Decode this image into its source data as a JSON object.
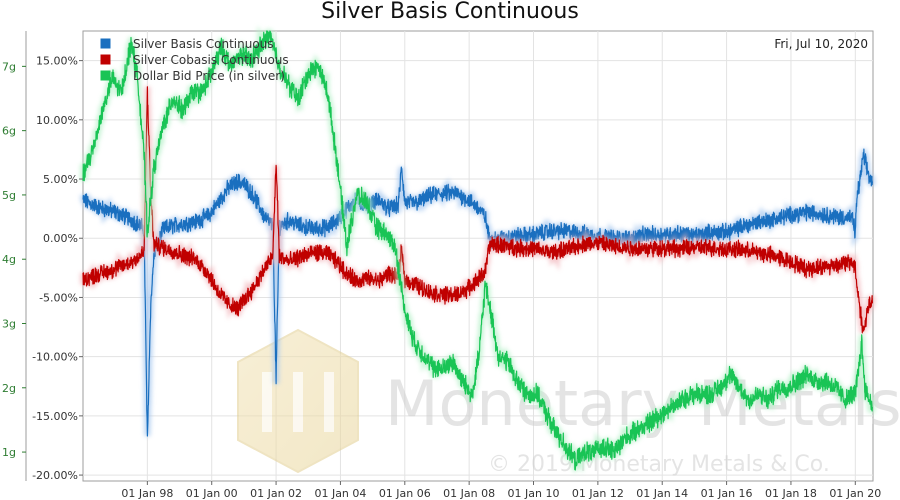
{
  "chart_data": {
    "type": "line",
    "title": "Silver Basis Continuous",
    "date_label": "Fri, Jul 10, 2020",
    "watermark": {
      "brand": "Monetary Metals",
      "copyright": "© 2019 Monetary Metals & Co."
    },
    "x_ticks": [
      "01 Jan 98",
      "01 Jan 00",
      "01 Jan 02",
      "01 Jan 04",
      "01 Jan 06",
      "01 Jan 08",
      "01 Jan 10",
      "01 Jan 12",
      "01 Jan 14",
      "01 Jan 16",
      "01 Jan 18",
      "01 Jan 20"
    ],
    "xlim": [
      1996.0,
      2020.55
    ],
    "y_left": {
      "ticks": [
        "15.00%",
        "10.00%",
        "5.00%",
        "0.00%",
        "-5.00%",
        "-10.00%",
        "-15.00%",
        "-20.00%"
      ],
      "tick_values": [
        15,
        10,
        5,
        0,
        -5,
        -10,
        -15,
        -20
      ],
      "ylim": [
        -20.5,
        17.5
      ]
    },
    "y_right": {
      "ticks": [
        "7g",
        "6g",
        "5g",
        "4g",
        "3g",
        "2g",
        "1g"
      ],
      "tick_values": [
        7,
        6,
        5,
        4,
        3,
        2,
        1
      ],
      "ylim": [
        0.55,
        7.55
      ]
    },
    "grid": true,
    "legend_position": "top-left",
    "series": [
      {
        "name": "Silver Basis Continuous",
        "color": "#1a6fbf",
        "glow": "#a9c9ef",
        "axis": "left",
        "points": [
          [
            1996.0,
            3.2
          ],
          [
            1996.5,
            2.6
          ],
          [
            1997.0,
            2.2
          ],
          [
            1997.5,
            1.6
          ],
          [
            1997.9,
            0.8
          ],
          [
            1998.0,
            -17.2
          ],
          [
            1998.1,
            -6.0
          ],
          [
            1998.2,
            -1.5
          ],
          [
            1998.5,
            0.8
          ],
          [
            1999.0,
            1.2
          ],
          [
            1999.5,
            1.4
          ],
          [
            1999.9,
            1.9
          ],
          [
            2000.2,
            3.0
          ],
          [
            2000.5,
            4.2
          ],
          [
            2000.8,
            4.8
          ],
          [
            2001.0,
            4.6
          ],
          [
            2001.3,
            3.6
          ],
          [
            2001.6,
            2.0
          ],
          [
            2001.9,
            1.0
          ],
          [
            2002.0,
            -12.0
          ],
          [
            2002.1,
            1.0
          ],
          [
            2002.4,
            1.5
          ],
          [
            2002.8,
            1.0
          ],
          [
            2003.2,
            0.8
          ],
          [
            2003.6,
            0.9
          ],
          [
            2003.9,
            1.5
          ],
          [
            2004.2,
            2.5
          ],
          [
            2004.5,
            3.2
          ],
          [
            2004.8,
            2.8
          ],
          [
            2005.2,
            3.2
          ],
          [
            2005.5,
            2.5
          ],
          [
            2005.8,
            2.8
          ],
          [
            2005.9,
            6.0
          ],
          [
            2006.0,
            3.0
          ],
          [
            2006.4,
            3.0
          ],
          [
            2006.8,
            3.6
          ],
          [
            2007.2,
            3.8
          ],
          [
            2007.6,
            3.8
          ],
          [
            2008.0,
            3.2
          ],
          [
            2008.3,
            2.5
          ],
          [
            2008.5,
            1.8
          ],
          [
            2008.6,
            0.3
          ],
          [
            2008.7,
            -0.2
          ],
          [
            2009.0,
            0.0
          ],
          [
            2009.5,
            0.2
          ],
          [
            2010.0,
            0.3
          ],
          [
            2010.5,
            0.6
          ],
          [
            2011.0,
            0.6
          ],
          [
            2011.5,
            0.4
          ],
          [
            2012.0,
            0.2
          ],
          [
            2012.5,
            0.0
          ],
          [
            2013.0,
            0.0
          ],
          [
            2013.5,
            0.3
          ],
          [
            2014.0,
            0.3
          ],
          [
            2014.5,
            0.4
          ],
          [
            2015.0,
            0.2
          ],
          [
            2015.5,
            0.5
          ],
          [
            2016.0,
            0.5
          ],
          [
            2016.5,
            1.0
          ],
          [
            2017.0,
            1.4
          ],
          [
            2017.5,
            1.6
          ],
          [
            2018.0,
            2.0
          ],
          [
            2018.5,
            2.2
          ],
          [
            2019.0,
            2.0
          ],
          [
            2019.5,
            1.8
          ],
          [
            2019.9,
            1.7
          ],
          [
            2020.0,
            0.5
          ],
          [
            2020.05,
            3.5
          ],
          [
            2020.15,
            5.0
          ],
          [
            2020.25,
            7.0
          ],
          [
            2020.35,
            6.0
          ],
          [
            2020.45,
            5.0
          ],
          [
            2020.53,
            4.8
          ]
        ]
      },
      {
        "name": "Silver Cobasis Continuous",
        "color": "#c00000",
        "glow": "#f2b8bd",
        "axis": "left",
        "points": [
          [
            1996.0,
            -3.5
          ],
          [
            1996.5,
            -3.0
          ],
          [
            1997.0,
            -2.6
          ],
          [
            1997.5,
            -2.0
          ],
          [
            1997.9,
            -1.2
          ],
          [
            1998.0,
            12.5
          ],
          [
            1998.1,
            4.0
          ],
          [
            1998.2,
            -0.5
          ],
          [
            1998.5,
            -0.8
          ],
          [
            1999.0,
            -1.3
          ],
          [
            1999.5,
            -1.8
          ],
          [
            1999.9,
            -3.0
          ],
          [
            2000.2,
            -4.5
          ],
          [
            2000.5,
            -5.5
          ],
          [
            2000.8,
            -6.0
          ],
          [
            2001.0,
            -5.2
          ],
          [
            2001.3,
            -4.2
          ],
          [
            2001.6,
            -2.8
          ],
          [
            2001.9,
            -1.5
          ],
          [
            2002.0,
            6.5
          ],
          [
            2002.1,
            -1.5
          ],
          [
            2002.4,
            -2.0
          ],
          [
            2002.8,
            -1.5
          ],
          [
            2003.2,
            -1.2
          ],
          [
            2003.6,
            -1.3
          ],
          [
            2003.9,
            -2.0
          ],
          [
            2004.2,
            -3.0
          ],
          [
            2004.5,
            -3.6
          ],
          [
            2004.8,
            -3.4
          ],
          [
            2005.2,
            -3.6
          ],
          [
            2005.5,
            -3.0
          ],
          [
            2005.8,
            -3.2
          ],
          [
            2005.9,
            -1.0
          ],
          [
            2006.0,
            -3.5
          ],
          [
            2006.4,
            -4.0
          ],
          [
            2006.8,
            -4.6
          ],
          [
            2007.2,
            -4.8
          ],
          [
            2007.6,
            -4.8
          ],
          [
            2008.0,
            -4.2
          ],
          [
            2008.3,
            -3.4
          ],
          [
            2008.5,
            -2.8
          ],
          [
            2008.6,
            -1.0
          ],
          [
            2008.7,
            -0.5
          ],
          [
            2009.0,
            -0.6
          ],
          [
            2009.5,
            -0.8
          ],
          [
            2010.0,
            -0.9
          ],
          [
            2010.5,
            -1.2
          ],
          [
            2011.0,
            -1.0
          ],
          [
            2011.5,
            -0.5
          ],
          [
            2012.0,
            -0.4
          ],
          [
            2012.5,
            -0.7
          ],
          [
            2013.0,
            -0.8
          ],
          [
            2013.5,
            -0.9
          ],
          [
            2014.0,
            -0.8
          ],
          [
            2014.5,
            -0.9
          ],
          [
            2015.0,
            -0.8
          ],
          [
            2015.5,
            -0.8
          ],
          [
            2016.0,
            -0.9
          ],
          [
            2016.5,
            -1.0
          ],
          [
            2017.0,
            -1.2
          ],
          [
            2017.5,
            -1.5
          ],
          [
            2018.0,
            -2.0
          ],
          [
            2018.5,
            -2.6
          ],
          [
            2019.0,
            -2.4
          ],
          [
            2019.5,
            -2.2
          ],
          [
            2019.9,
            -2.0
          ],
          [
            2020.0,
            -2.5
          ],
          [
            2020.05,
            -4.0
          ],
          [
            2020.15,
            -6.0
          ],
          [
            2020.25,
            -8.0
          ],
          [
            2020.35,
            -6.5
          ],
          [
            2020.45,
            -5.5
          ],
          [
            2020.53,
            -5.5
          ]
        ]
      },
      {
        "name": "Dollar Bid Price (in silver)",
        "color": "#19c455",
        "glow": "#b5f0c8",
        "axis": "right",
        "points": [
          [
            1996.0,
            5.3
          ],
          [
            1996.3,
            5.7
          ],
          [
            1996.6,
            6.3
          ],
          [
            1996.9,
            6.8
          ],
          [
            1997.2,
            6.6
          ],
          [
            1997.5,
            7.4
          ],
          [
            1997.7,
            6.8
          ],
          [
            1997.9,
            5.6
          ],
          [
            1998.0,
            4.4
          ],
          [
            1998.2,
            5.4
          ],
          [
            1998.5,
            6.1
          ],
          [
            1998.8,
            6.5
          ],
          [
            1999.1,
            6.3
          ],
          [
            1999.4,
            6.6
          ],
          [
            1999.7,
            6.6
          ],
          [
            2000.0,
            6.9
          ],
          [
            2000.3,
            7.3
          ],
          [
            2000.6,
            7.0
          ],
          [
            2000.9,
            7.2
          ],
          [
            2001.2,
            7.1
          ],
          [
            2001.5,
            7.3
          ],
          [
            2001.8,
            7.5
          ],
          [
            2002.1,
            7.0
          ],
          [
            2002.4,
            6.7
          ],
          [
            2002.7,
            6.5
          ],
          [
            2003.0,
            6.9
          ],
          [
            2003.3,
            7.0
          ],
          [
            2003.6,
            6.6
          ],
          [
            2003.9,
            5.5
          ],
          [
            2004.2,
            4.2
          ],
          [
            2004.5,
            5.0
          ],
          [
            2004.8,
            4.9
          ],
          [
            2005.1,
            4.5
          ],
          [
            2005.4,
            4.4
          ],
          [
            2005.7,
            4.2
          ],
          [
            2006.0,
            3.2
          ],
          [
            2006.3,
            2.7
          ],
          [
            2006.6,
            2.5
          ],
          [
            2006.9,
            2.3
          ],
          [
            2007.2,
            2.3
          ],
          [
            2007.5,
            2.4
          ],
          [
            2007.8,
            2.1
          ],
          [
            2008.1,
            1.9
          ],
          [
            2008.3,
            2.5
          ],
          [
            2008.5,
            3.6
          ],
          [
            2008.7,
            3.1
          ],
          [
            2008.9,
            2.5
          ],
          [
            2009.2,
            2.4
          ],
          [
            2009.5,
            2.1
          ],
          [
            2009.8,
            1.9
          ],
          [
            2010.1,
            1.9
          ],
          [
            2010.4,
            1.6
          ],
          [
            2010.7,
            1.3
          ],
          [
            2011.0,
            1.1
          ],
          [
            2011.3,
            0.85
          ],
          [
            2011.6,
            1.0
          ],
          [
            2011.9,
            1.0
          ],
          [
            2012.2,
            1.1
          ],
          [
            2012.5,
            1.0
          ],
          [
            2012.8,
            1.2
          ],
          [
            2013.1,
            1.3
          ],
          [
            2013.4,
            1.4
          ],
          [
            2013.7,
            1.5
          ],
          [
            2014.0,
            1.6
          ],
          [
            2014.3,
            1.7
          ],
          [
            2014.6,
            1.8
          ],
          [
            2014.9,
            1.9
          ],
          [
            2015.2,
            1.9
          ],
          [
            2015.5,
            1.9
          ],
          [
            2015.8,
            2.0
          ],
          [
            2016.1,
            2.2
          ],
          [
            2016.4,
            2.0
          ],
          [
            2016.7,
            1.8
          ],
          [
            2017.0,
            1.9
          ],
          [
            2017.3,
            1.8
          ],
          [
            2017.6,
            2.0
          ],
          [
            2017.9,
            2.0
          ],
          [
            2018.2,
            2.1
          ],
          [
            2018.5,
            2.2
          ],
          [
            2018.8,
            2.1
          ],
          [
            2019.1,
            2.1
          ],
          [
            2019.4,
            2.0
          ],
          [
            2019.7,
            1.8
          ],
          [
            2019.9,
            1.9
          ],
          [
            2020.0,
            1.9
          ],
          [
            2020.2,
            2.7
          ],
          [
            2020.3,
            2.0
          ],
          [
            2020.45,
            1.8
          ],
          [
            2020.53,
            1.7
          ]
        ]
      }
    ]
  }
}
